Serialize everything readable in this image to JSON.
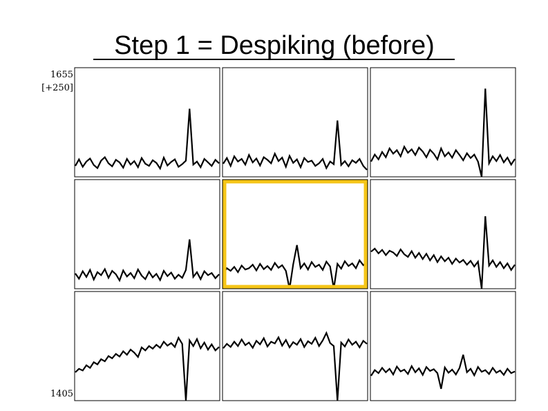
{
  "chart_data": {
    "type": "line",
    "title": "Step 1 = Despiking (before)",
    "ylim": [
      1405,
      1655
    ],
    "yticks": [
      1405,
      1655
    ],
    "range_label": "[+250]",
    "color": "#000000",
    "highlight_panel": 4,
    "highlight_color": "#f5c518",
    "panels": [
      {
        "values": [
          1430,
          1445,
          1428,
          1440,
          1447,
          1432,
          1425,
          1442,
          1450,
          1436,
          1429,
          1444,
          1438,
          1426,
          1446,
          1433,
          1441,
          1427,
          1448,
          1435,
          1430,
          1443,
          1437,
          1424,
          1449,
          1431,
          1439,
          1445,
          1428,
          1434,
          1442,
          1561,
          1433,
          1440,
          1427,
          1446,
          1438,
          1430,
          1444,
          1436
        ]
      },
      {
        "values": [
          1435,
          1448,
          1430,
          1452,
          1440,
          1446,
          1433,
          1455,
          1438,
          1447,
          1431,
          1450,
          1444,
          1436,
          1458,
          1441,
          1449,
          1428,
          1453,
          1437,
          1445,
          1427,
          1448,
          1439,
          1442,
          1430,
          1436,
          1446,
          1425,
          1440,
          1434,
          1534,
          1432,
          1441,
          1429,
          1443,
          1437,
          1446,
          1430,
          1421
        ]
      },
      {
        "values": [
          1440,
          1456,
          1445,
          1462,
          1450,
          1470,
          1458,
          1466,
          1452,
          1474,
          1460,
          1468,
          1455,
          1472,
          1463,
          1450,
          1467,
          1458,
          1445,
          1470,
          1452,
          1461,
          1449,
          1466,
          1455,
          1443,
          1459,
          1448,
          1456,
          1440,
          1405,
          1607,
          1436,
          1452,
          1441,
          1455,
          1438,
          1449,
          1433,
          1446
        ]
      },
      {
        "values": [
          1440,
          1428,
          1445,
          1432,
          1448,
          1426,
          1443,
          1436,
          1450,
          1430,
          1446,
          1438,
          1424,
          1447,
          1433,
          1441,
          1429,
          1449,
          1435,
          1427,
          1444,
          1431,
          1439,
          1425,
          1446,
          1434,
          1442,
          1428,
          1437,
          1430,
          1448,
          1518,
          1432,
          1443,
          1427,
          1445,
          1436,
          1441,
          1429,
          1438
        ]
      },
      {
        "values": [
          1440,
          1452,
          1446,
          1455,
          1443,
          1458,
          1449,
          1452,
          1460,
          1447,
          1462,
          1450,
          1457,
          1448,
          1464,
          1453,
          1459,
          1446,
          1405,
          1461,
          1505,
          1452,
          1463,
          1449,
          1466,
          1455,
          1460,
          1448,
          1467,
          1456,
          1405,
          1462,
          1451,
          1468,
          1457,
          1463,
          1452,
          1470,
          1459,
          1466
        ]
      },
      {
        "values": [
          1490,
          1497,
          1486,
          1494,
          1482,
          1492,
          1488,
          1480,
          1495,
          1484,
          1478,
          1491,
          1476,
          1487,
          1473,
          1485,
          1470,
          1482,
          1466,
          1479,
          1468,
          1476,
          1462,
          1474,
          1465,
          1471,
          1460,
          1469,
          1456,
          1467,
          1405,
          1571,
          1458,
          1470,
          1455,
          1466,
          1452,
          1463,
          1448,
          1460
        ]
      },
      {
        "values": [
          1470,
          1478,
          1474,
          1486,
          1480,
          1493,
          1488,
          1500,
          1495,
          1507,
          1502,
          1512,
          1506,
          1518,
          1510,
          1522,
          1515,
          1505,
          1527,
          1520,
          1530,
          1524,
          1533,
          1526,
          1540,
          1531,
          1537,
          1528,
          1549,
          1535,
          1405,
          1543,
          1530,
          1546,
          1525,
          1538,
          1522,
          1534,
          1520,
          1528
        ]
      },
      {
        "values": [
          1525,
          1535,
          1528,
          1540,
          1530,
          1545,
          1532,
          1538,
          1526,
          1542,
          1534,
          1548,
          1529,
          1540,
          1536,
          1550,
          1531,
          1544,
          1527,
          1539,
          1533,
          1546,
          1528,
          1541,
          1535,
          1549,
          1530,
          1543,
          1560,
          1537,
          1530,
          1405,
          1538,
          1529,
          1545,
          1533,
          1540,
          1527,
          1542,
          1535
        ]
      },
      {
        "values": [
          1462,
          1475,
          1468,
          1480,
          1470,
          1478,
          1465,
          1483,
          1472,
          1476,
          1466,
          1484,
          1470,
          1479,
          1464,
          1482,
          1473,
          1477,
          1468,
          1432,
          1481,
          1469,
          1476,
          1465,
          1480,
          1510,
          1470,
          1478,
          1463,
          1482,
          1471,
          1475,
          1466,
          1480,
          1469,
          1474,
          1464,
          1478,
          1468,
          1472
        ]
      }
    ]
  }
}
